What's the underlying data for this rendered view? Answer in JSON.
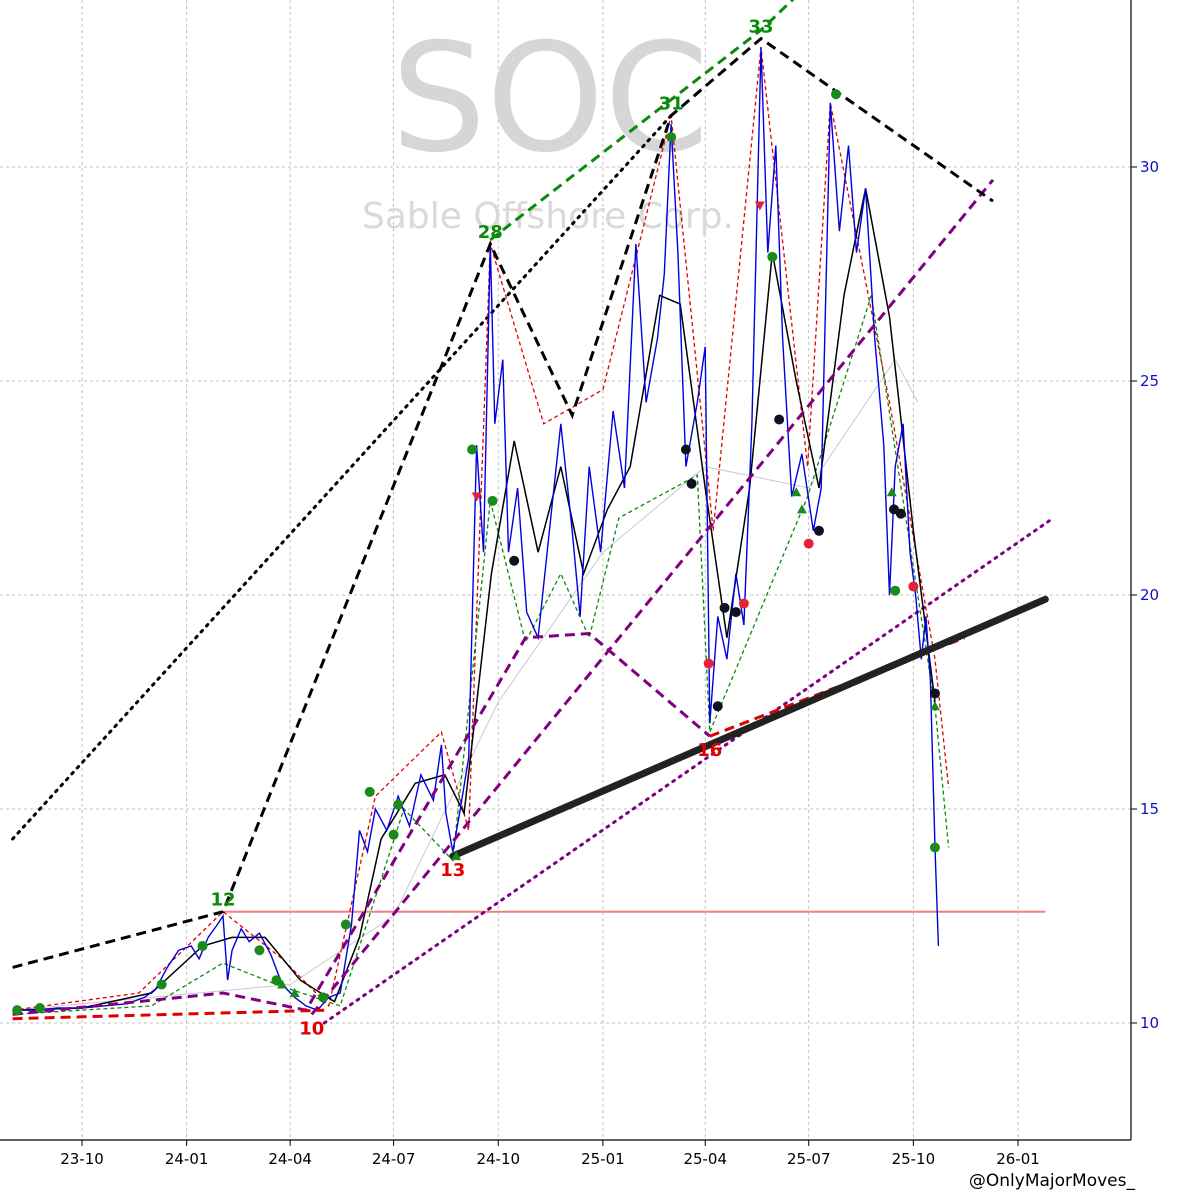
{
  "chart_data": {
    "type": "line",
    "title": "",
    "watermark": {
      "ticker": "SOC",
      "name": "Sable Offshore Corp."
    },
    "credit": "@OnlyMajorMoves_",
    "x_axis": {
      "ticks": [
        "23-10",
        "24-01",
        "24-04",
        "24-07",
        "24-10",
        "25-01",
        "25-04",
        "25-07",
        "25-10",
        "26-01"
      ],
      "tick_dates": [
        "2023-10-01",
        "2024-01-01",
        "2024-04-01",
        "2024-07-01",
        "2024-10-01",
        "2025-01-01",
        "2025-04-01",
        "2025-07-01",
        "2025-10-01",
        "2026-01-01"
      ]
    },
    "y_axis": {
      "side": "right",
      "ticks": [
        10,
        15,
        20,
        25,
        30
      ],
      "ylim": [
        7.5,
        33.5
      ]
    },
    "grid": true,
    "colors": {
      "price": "#0000e0",
      "ma_fast": "#000000",
      "ma_slow": "#c8c8d8",
      "zig_high": "#e00000",
      "zig_low": "#0a8a0a",
      "purple": "#800080",
      "black_trend": "#000000",
      "support": "#222222",
      "resistance_h": "#f08080",
      "axis_label": "#1010c8"
    },
    "price_series": [
      [
        "2023-08-01",
        10.3
      ],
      [
        "2023-08-20",
        10.3
      ],
      [
        "2023-09-10",
        10.35
      ],
      [
        "2023-10-01",
        10.35
      ],
      [
        "2023-10-20",
        10.4
      ],
      [
        "2023-11-10",
        10.45
      ],
      [
        "2023-11-25",
        10.6
      ],
      [
        "2023-12-05",
        10.8
      ],
      [
        "2023-12-15",
        11.3
      ],
      [
        "2023-12-25",
        11.7
      ],
      [
        "2024-01-05",
        11.8
      ],
      [
        "2024-01-12",
        11.5
      ],
      [
        "2024-01-20",
        12.0
      ],
      [
        "2024-01-28",
        12.3
      ],
      [
        "2024-02-02",
        12.5
      ],
      [
        "2024-02-06",
        11.0
      ],
      [
        "2024-02-10",
        11.7
      ],
      [
        "2024-02-18",
        12.2
      ],
      [
        "2024-02-25",
        11.9
      ],
      [
        "2024-03-05",
        12.1
      ],
      [
        "2024-03-15",
        11.6
      ],
      [
        "2024-03-25",
        10.9
      ],
      [
        "2024-04-05",
        10.6
      ],
      [
        "2024-04-15",
        10.4
      ],
      [
        "2024-04-25",
        10.3
      ],
      [
        "2024-05-05",
        10.6
      ],
      [
        "2024-05-15",
        10.7
      ],
      [
        "2024-05-25",
        12.3
      ],
      [
        "2024-06-01",
        14.5
      ],
      [
        "2024-06-08",
        14.0
      ],
      [
        "2024-06-15",
        15.0
      ],
      [
        "2024-06-25",
        14.5
      ],
      [
        "2024-07-05",
        15.3
      ],
      [
        "2024-07-15",
        14.6
      ],
      [
        "2024-07-25",
        15.8
      ],
      [
        "2024-08-05",
        15.2
      ],
      [
        "2024-08-12",
        16.5
      ],
      [
        "2024-08-16",
        14.9
      ],
      [
        "2024-08-22",
        14.0
      ],
      [
        "2024-08-28",
        14.9
      ],
      [
        "2024-09-05",
        16.2
      ],
      [
        "2024-09-12",
        23.5
      ],
      [
        "2024-09-18",
        21.0
      ],
      [
        "2024-09-24",
        28.2
      ],
      [
        "2024-09-28",
        24.0
      ],
      [
        "2024-10-05",
        25.5
      ],
      [
        "2024-10-10",
        21.0
      ],
      [
        "2024-10-18",
        22.5
      ],
      [
        "2024-10-26",
        19.6
      ],
      [
        "2024-11-05",
        19.0
      ],
      [
        "2024-11-15",
        21.5
      ],
      [
        "2024-11-25",
        24.0
      ],
      [
        "2024-12-05",
        21.5
      ],
      [
        "2024-12-12",
        19.5
      ],
      [
        "2024-12-20",
        23.0
      ],
      [
        "2024-12-30",
        21.0
      ],
      [
        "2025-01-10",
        24.3
      ],
      [
        "2025-01-20",
        22.5
      ],
      [
        "2025-01-30",
        28.2
      ],
      [
        "2025-02-08",
        24.5
      ],
      [
        "2025-02-18",
        26.0
      ],
      [
        "2025-02-24",
        27.5
      ],
      [
        "2025-03-02",
        31.0
      ],
      [
        "2025-03-08",
        28.0
      ],
      [
        "2025-03-15",
        23.0
      ],
      [
        "2025-03-25",
        24.5
      ],
      [
        "2025-04-01",
        25.8
      ],
      [
        "2025-04-05",
        17.0
      ],
      [
        "2025-04-12",
        19.5
      ],
      [
        "2025-04-20",
        18.5
      ],
      [
        "2025-04-28",
        20.5
      ],
      [
        "2025-05-05",
        19.3
      ],
      [
        "2025-05-12",
        24.0
      ],
      [
        "2025-05-20",
        32.8
      ],
      [
        "2025-05-26",
        28.0
      ],
      [
        "2025-06-02",
        30.5
      ],
      [
        "2025-06-08",
        26.0
      ],
      [
        "2025-06-16",
        22.3
      ],
      [
        "2025-06-25",
        23.3
      ],
      [
        "2025-07-05",
        21.5
      ],
      [
        "2025-07-12",
        22.5
      ],
      [
        "2025-07-20",
        31.5
      ],
      [
        "2025-07-28",
        28.5
      ],
      [
        "2025-08-05",
        30.5
      ],
      [
        "2025-08-12",
        28.0
      ],
      [
        "2025-08-20",
        29.5
      ],
      [
        "2025-08-28",
        26.0
      ],
      [
        "2025-09-05",
        23.5
      ],
      [
        "2025-09-10",
        20.0
      ],
      [
        "2025-09-15",
        23.0
      ],
      [
        "2025-09-22",
        24.0
      ],
      [
        "2025-09-28",
        21.0
      ],
      [
        "2025-10-03",
        20.0
      ],
      [
        "2025-10-08",
        18.5
      ],
      [
        "2025-10-12",
        19.5
      ],
      [
        "2025-10-16",
        18.0
      ],
      [
        "2025-10-20",
        14.1
      ],
      [
        "2025-10-23",
        11.8
      ]
    ],
    "ma_fast": [
      [
        "2023-08-01",
        10.3
      ],
      [
        "2023-10-01",
        10.35
      ],
      [
        "2023-12-01",
        10.7
      ],
      [
        "2024-01-15",
        11.8
      ],
      [
        "2024-02-10",
        12.0
      ],
      [
        "2024-03-10",
        12.0
      ],
      [
        "2024-04-10",
        11.0
      ],
      [
        "2024-05-10",
        10.5
      ],
      [
        "2024-06-01",
        12.0
      ],
      [
        "2024-06-20",
        14.3
      ],
      [
        "2024-07-20",
        15.6
      ],
      [
        "2024-08-15",
        15.8
      ],
      [
        "2024-09-01",
        14.9
      ],
      [
        "2024-09-25",
        20.5
      ],
      [
        "2024-10-15",
        23.6
      ],
      [
        "2024-11-05",
        21.0
      ],
      [
        "2024-11-25",
        23.0
      ],
      [
        "2024-12-15",
        20.5
      ],
      [
        "2025-01-05",
        22.0
      ],
      [
        "2025-01-25",
        23.0
      ],
      [
        "2025-02-20",
        27.0
      ],
      [
        "2025-03-10",
        26.8
      ],
      [
        "2025-04-01",
        22.5
      ],
      [
        "2025-04-20",
        19.0
      ],
      [
        "2025-05-10",
        22.5
      ],
      [
        "2025-05-30",
        28.0
      ],
      [
        "2025-06-20",
        25.0
      ],
      [
        "2025-07-10",
        22.5
      ],
      [
        "2025-08-01",
        27.0
      ],
      [
        "2025-08-20",
        29.5
      ],
      [
        "2025-09-10",
        26.5
      ],
      [
        "2025-10-01",
        21.5
      ],
      [
        "2025-10-20",
        17.5
      ]
    ],
    "ma_slow": [
      [
        "2023-08-01",
        10.3
      ],
      [
        "2024-04-01",
        10.9
      ],
      [
        "2024-07-01",
        12.5
      ],
      [
        "2024-10-01",
        17.5
      ],
      [
        "2025-01-01",
        21.0
      ],
      [
        "2025-04-01",
        23.0
      ],
      [
        "2025-07-01",
        22.5
      ],
      [
        "2025-09-15",
        25.5
      ],
      [
        "2025-10-05",
        24.5
      ]
    ],
    "zigzag_high": [
      [
        "2023-08-01",
        10.3
      ],
      [
        "2023-11-20",
        10.7
      ],
      [
        "2024-02-02",
        12.6
      ],
      [
        "2024-03-25",
        11.5
      ],
      [
        "2024-05-05",
        10.4
      ],
      [
        "2024-06-15",
        15.3
      ],
      [
        "2024-08-12",
        16.8
      ],
      [
        "2024-09-05",
        14.5
      ],
      [
        "2024-09-24",
        28.2
      ],
      [
        "2024-11-10",
        24.0
      ],
      [
        "2025-01-01",
        24.8
      ],
      [
        "2025-03-02",
        31.2
      ],
      [
        "2025-04-08",
        21.5
      ],
      [
        "2025-05-20",
        32.8
      ],
      [
        "2025-06-30",
        23.0
      ],
      [
        "2025-07-20",
        31.5
      ],
      [
        "2025-09-10",
        24.5
      ],
      [
        "2025-10-20",
        18.5
      ],
      [
        "2025-11-01",
        15.5
      ]
    ],
    "zigzag_low": [
      [
        "2023-08-01",
        10.2
      ],
      [
        "2023-12-01",
        10.4
      ],
      [
        "2024-02-02",
        11.4
      ],
      [
        "2024-03-20",
        10.9
      ],
      [
        "2024-05-15",
        10.4
      ],
      [
        "2024-07-10",
        15.0
      ],
      [
        "2024-08-22",
        13.8
      ],
      [
        "2024-09-24",
        22.2
      ],
      [
        "2024-10-25",
        18.9
      ],
      [
        "2024-11-25",
        20.5
      ],
      [
        "2024-12-20",
        19.0
      ],
      [
        "2025-01-15",
        21.8
      ],
      [
        "2025-03-25",
        22.8
      ],
      [
        "2025-04-05",
        16.8
      ],
      [
        "2025-06-30",
        22.3
      ],
      [
        "2025-08-25",
        27.0
      ],
      [
        "2025-10-20",
        17.4
      ],
      [
        "2025-11-01",
        14.1
      ]
    ],
    "purple_dashed": [
      [
        "2023-08-01",
        10.2
      ],
      [
        "2024-02-02",
        10.7
      ],
      [
        "2024-04-15",
        10.3
      ],
      [
        "2024-10-25",
        19.0
      ],
      [
        "2024-12-20",
        19.1
      ],
      [
        "2025-04-05",
        16.7
      ]
    ],
    "purple_channel_dashed": [
      [
        "2024-04-20",
        10.2
      ],
      [
        "2025-12-10",
        29.7
      ]
    ],
    "purple_channel_dotted": [
      [
        "2024-05-01",
        10.0
      ],
      [
        "2026-02-01",
        21.8
      ]
    ],
    "black_dashed_trend": [
      [
        "2023-08-01",
        11.3
      ],
      [
        "2024-02-02",
        12.6
      ],
      [
        "2024-09-24",
        28.2
      ],
      [
        "2024-12-05",
        24.2
      ],
      [
        "2025-03-02",
        31.2
      ],
      [
        "2025-05-20",
        33.0
      ],
      [
        "2025-12-10",
        29.2
      ]
    ],
    "black_dotted_trend": [
      [
        "2023-08-01",
        14.3
      ],
      [
        "2025-03-02",
        31.2
      ]
    ],
    "green_dashed_top": [
      [
        "2024-09-24",
        28.3
      ],
      [
        "2025-05-20",
        33.2
      ],
      [
        "2025-07-10",
        34.5
      ]
    ],
    "support_line": [
      [
        "2024-08-22",
        13.9
      ],
      [
        "2026-01-25",
        19.9
      ]
    ],
    "red_dashed_lines": [
      [
        "2023-08-01",
        10.1
      ],
      [
        "2024-05-01",
        10.3
      ],
      [
        "2025-04-05",
        16.7
      ],
      [
        "2025-11-15",
        19.0
      ]
    ],
    "horizontal_resistance": {
      "y": 12.6,
      "x_from": "2024-02-02",
      "x_to": "2026-01-25"
    },
    "pivot_labels": [
      {
        "text": "12",
        "x": "2024-02-02",
        "y": 12.6,
        "color": "green",
        "pos": "above"
      },
      {
        "text": "28",
        "x": "2024-09-24",
        "y": 28.2,
        "color": "green",
        "pos": "above"
      },
      {
        "text": "31",
        "x": "2025-03-02",
        "y": 31.2,
        "color": "green",
        "pos": "above"
      },
      {
        "text": "33",
        "x": "2025-05-20",
        "y": 33.0,
        "color": "green",
        "pos": "above"
      },
      {
        "text": "10",
        "x": "2024-04-20",
        "y": 10.2,
        "color": "red",
        "pos": "below"
      },
      {
        "text": "13",
        "x": "2024-08-22",
        "y": 13.9,
        "color": "red",
        "pos": "below"
      },
      {
        "text": "16",
        "x": "2025-04-05",
        "y": 16.7,
        "color": "red",
        "pos": "below"
      }
    ],
    "markers": [
      {
        "x": "2023-08-05",
        "y": 10.3,
        "kind": "dot",
        "color": "green"
      },
      {
        "x": "2023-08-25",
        "y": 10.35,
        "kind": "dot",
        "color": "green"
      },
      {
        "x": "2023-12-10",
        "y": 10.9,
        "kind": "dot",
        "color": "green"
      },
      {
        "x": "2024-01-15",
        "y": 11.8,
        "kind": "dot",
        "color": "green"
      },
      {
        "x": "2024-03-05",
        "y": 11.7,
        "kind": "dot",
        "color": "green"
      },
      {
        "x": "2024-03-20",
        "y": 11.0,
        "kind": "dot",
        "color": "green"
      },
      {
        "x": "2024-03-25",
        "y": 10.9,
        "kind": "tri",
        "color": "green"
      },
      {
        "x": "2024-04-05",
        "y": 10.7,
        "kind": "tri",
        "color": "green"
      },
      {
        "x": "2024-04-30",
        "y": 10.6,
        "kind": "dot",
        "color": "green"
      },
      {
        "x": "2024-05-20",
        "y": 12.3,
        "kind": "dot",
        "color": "green"
      },
      {
        "x": "2024-06-10",
        "y": 15.4,
        "kind": "dot",
        "color": "green"
      },
      {
        "x": "2024-07-01",
        "y": 14.4,
        "kind": "dot",
        "color": "green"
      },
      {
        "x": "2024-07-05",
        "y": 15.1,
        "kind": "dot",
        "color": "green"
      },
      {
        "x": "2024-08-25",
        "y": 13.9,
        "kind": "tri",
        "color": "green"
      },
      {
        "x": "2024-09-08",
        "y": 23.4,
        "kind": "dot",
        "color": "green"
      },
      {
        "x": "2024-09-12",
        "y": 22.3,
        "kind": "tri",
        "color": "red"
      },
      {
        "x": "2024-09-26",
        "y": 22.2,
        "kind": "dot",
        "color": "green"
      },
      {
        "x": "2024-10-15",
        "y": 20.8,
        "kind": "dot",
        "color": "black"
      },
      {
        "x": "2025-03-02",
        "y": 30.7,
        "kind": "dot",
        "color": "green"
      },
      {
        "x": "2025-03-15",
        "y": 23.4,
        "kind": "dot",
        "color": "black"
      },
      {
        "x": "2025-03-20",
        "y": 22.6,
        "kind": "dot",
        "color": "black"
      },
      {
        "x": "2025-04-04",
        "y": 18.4,
        "kind": "dot",
        "color": "red"
      },
      {
        "x": "2025-04-12",
        "y": 17.4,
        "kind": "dot",
        "color": "black"
      },
      {
        "x": "2025-04-18",
        "y": 19.7,
        "kind": "dot",
        "color": "black"
      },
      {
        "x": "2025-04-28",
        "y": 19.6,
        "kind": "dot",
        "color": "black"
      },
      {
        "x": "2025-05-05",
        "y": 19.8,
        "kind": "dot",
        "color": "red"
      },
      {
        "x": "2025-05-19",
        "y": 29.1,
        "kind": "tri",
        "color": "red"
      },
      {
        "x": "2025-05-30",
        "y": 27.9,
        "kind": "dot",
        "color": "green"
      },
      {
        "x": "2025-06-05",
        "y": 24.1,
        "kind": "dot",
        "color": "black"
      },
      {
        "x": "2025-06-20",
        "y": 22.4,
        "kind": "tri",
        "color": "green"
      },
      {
        "x": "2025-06-25",
        "y": 22.0,
        "kind": "tri",
        "color": "green"
      },
      {
        "x": "2025-07-01",
        "y": 21.2,
        "kind": "dot",
        "color": "red"
      },
      {
        "x": "2025-07-10",
        "y": 21.5,
        "kind": "dot",
        "color": "black"
      },
      {
        "x": "2025-07-25",
        "y": 31.7,
        "kind": "dot",
        "color": "green"
      },
      {
        "x": "2025-09-12",
        "y": 22.4,
        "kind": "tri",
        "color": "green"
      },
      {
        "x": "2025-09-14",
        "y": 22.0,
        "kind": "dot",
        "color": "black"
      },
      {
        "x": "2025-09-20",
        "y": 21.9,
        "kind": "dot",
        "color": "black"
      },
      {
        "x": "2025-09-15",
        "y": 20.1,
        "kind": "dot",
        "color": "green"
      },
      {
        "x": "2025-10-01",
        "y": 20.2,
        "kind": "dot",
        "color": "red"
      },
      {
        "x": "2025-10-20",
        "y": 17.7,
        "kind": "dot",
        "color": "black"
      },
      {
        "x": "2025-10-20",
        "y": 17.4,
        "kind": "tri",
        "color": "green"
      },
      {
        "x": "2025-10-20",
        "y": 14.1,
        "kind": "dot",
        "color": "green"
      }
    ]
  }
}
